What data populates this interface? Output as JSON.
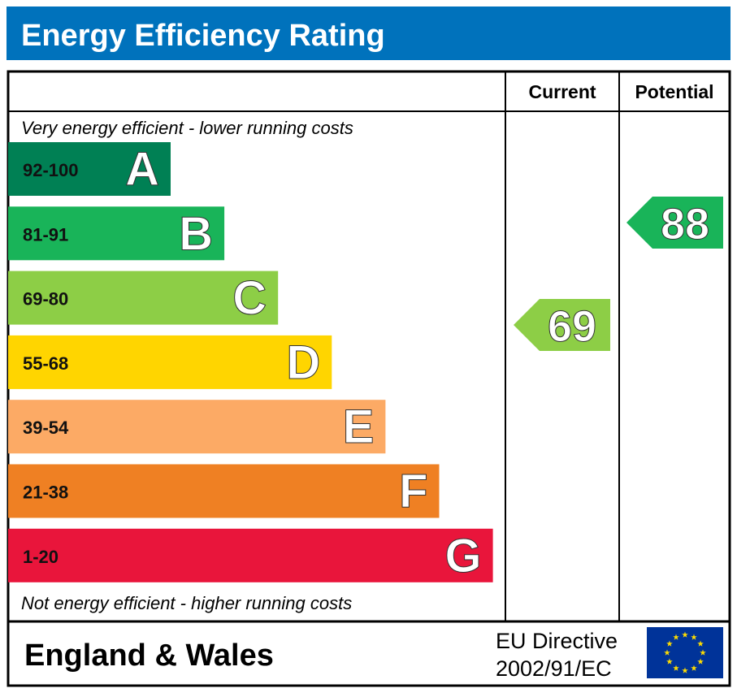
{
  "header": {
    "title": "Energy Efficiency Rating"
  },
  "columns": {
    "current": "Current",
    "potential": "Potential"
  },
  "top_note": "Very energy efficient - lower running costs",
  "bottom_note": "Not energy efficient - higher running costs",
  "bands": [
    {
      "range": "92-100",
      "letter": "A",
      "color": "#008054"
    },
    {
      "range": "81-91",
      "letter": "B",
      "color": "#19b459"
    },
    {
      "range": "69-80",
      "letter": "C",
      "color": "#8dce46"
    },
    {
      "range": "55-68",
      "letter": "D",
      "color": "#ffd500"
    },
    {
      "range": "39-54",
      "letter": "E",
      "color": "#fcaa65"
    },
    {
      "range": "21-38",
      "letter": "F",
      "color": "#ef8023"
    },
    {
      "range": "1-20",
      "letter": "G",
      "color": "#e9153b"
    }
  ],
  "current": {
    "value": 69,
    "color": "#8dce46"
  },
  "potential": {
    "value": 88,
    "color": "#19b459"
  },
  "footer": {
    "region": "England & Wales",
    "directive": [
      "EU Directive",
      "2002/91/EC"
    ]
  }
}
